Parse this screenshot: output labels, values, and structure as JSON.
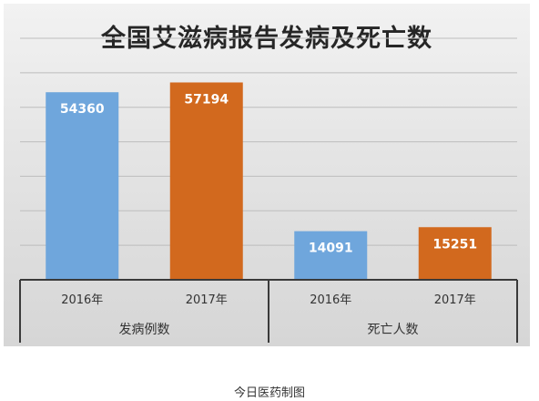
{
  "chart_data": {
    "type": "bar",
    "title": "全国艾滋病报告发病及死亡数",
    "groups": [
      {
        "label": "发病例数",
        "bars": [
          {
            "category": "2016年",
            "value": 54360,
            "color": "#6fa6dc"
          },
          {
            "category": "2017年",
            "value": 57194,
            "color": "#d2691e"
          }
        ]
      },
      {
        "label": "死亡人数",
        "bars": [
          {
            "category": "2016年",
            "value": 14091,
            "color": "#6fa6dc"
          },
          {
            "category": "2017年",
            "value": 15251,
            "color": "#d2691e"
          }
        ]
      }
    ],
    "ylim": [
      0,
      70000
    ],
    "grid": true,
    "legend": "none"
  },
  "caption": "今日医药制图"
}
